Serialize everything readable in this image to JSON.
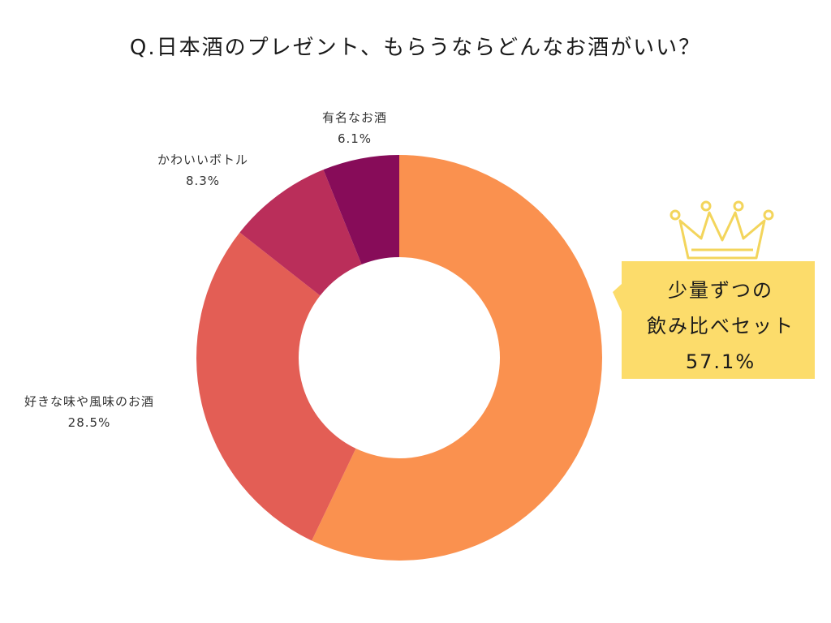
{
  "title": "Q.日本酒のプレゼント、もらうならどんなお酒がいい？",
  "chart_data": {
    "type": "pie",
    "title": "Q.日本酒のプレゼント、もらうならどんなお酒がいい？",
    "donut": true,
    "start_angle": "12 o'clock, clockwise",
    "slices": [
      {
        "label_lines": [
          "少量ずつの",
          "飲み比べセット"
        ],
        "value": 57.1,
        "value_label": "57.1%",
        "color": "#FA914F",
        "highlighted": true
      },
      {
        "label_lines": [
          "好きな味や風味のお酒"
        ],
        "value": 28.5,
        "value_label": "28.5%",
        "color": "#E35E55"
      },
      {
        "label_lines": [
          "かわいいボトル"
        ],
        "value": 8.3,
        "value_label": "8.3%",
        "color": "#BA2E5A"
      },
      {
        "label_lines": [
          "有名なお酒"
        ],
        "value": 6.1,
        "value_label": "6.1%",
        "color": "#870C59"
      }
    ],
    "highlight": {
      "box_color": "#FCDC6B",
      "crown_icon": "crown-icon",
      "crown_color": "#F3D55C"
    },
    "legend": "none"
  }
}
